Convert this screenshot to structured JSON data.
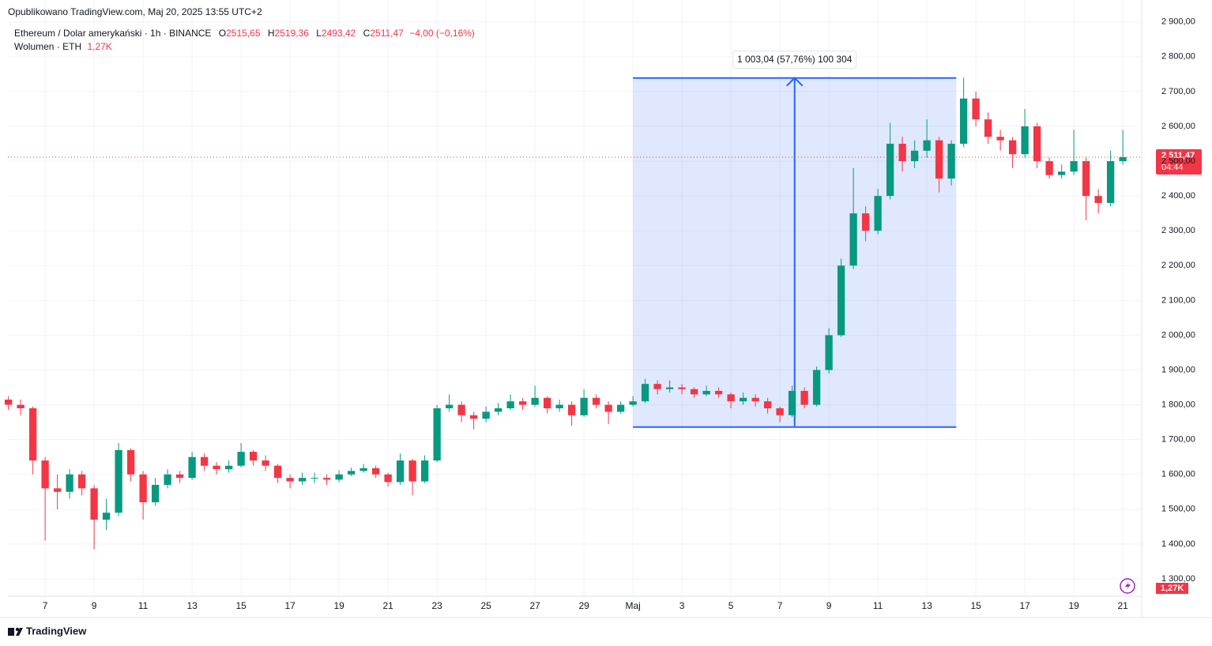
{
  "header": {
    "published": "Opublikowano TradingView.com, Maj 20, 2025 13:55 UTC+2",
    "symbol": "Ethereum / Dolar amerykański · 1h · BINANCE",
    "o_label": "O",
    "o": "2515,65",
    "h_label": "H",
    "h": "2519,36",
    "l_label": "L",
    "l": "2493,42",
    "c_label": "C",
    "c": "2511,47",
    "change": "−4,00 (−0,16%)",
    "volume_label": "Wolumen · ETH",
    "volume": "1,27K"
  },
  "footer": {
    "brand": "TradingView"
  },
  "chart_data": {
    "type": "candlestick",
    "up_color": "#089981",
    "down_color": "#f23645",
    "grid": true,
    "xlim": [
      5.48,
      51.77
    ],
    "ylim": [
      1250,
      2963
    ],
    "xticks": [
      7,
      9,
      11,
      13,
      15,
      17,
      19,
      21,
      23,
      25,
      27,
      29,
      {
        "value": 31,
        "label": "Maj"
      },
      {
        "value": 33,
        "label": "3"
      },
      {
        "value": 35,
        "label": "5"
      },
      {
        "value": 37,
        "label": "7"
      },
      {
        "value": 39,
        "label": "9"
      },
      {
        "value": 41,
        "label": "11"
      },
      {
        "value": 43,
        "label": "13"
      },
      {
        "value": 45,
        "label": "15"
      },
      {
        "value": 47,
        "label": "17"
      },
      {
        "value": 49,
        "label": "19"
      },
      {
        "value": 51,
        "label": "21"
      }
    ],
    "yticks": [
      {
        "value": 1300,
        "label": "1 300,00"
      },
      {
        "value": 1400,
        "label": "1 400,00"
      },
      {
        "value": 1500,
        "label": "1 500,00"
      },
      {
        "value": 1600,
        "label": "1 600,00"
      },
      {
        "value": 1700,
        "label": "1 700,00"
      },
      {
        "value": 1800,
        "label": "1 800,00"
      },
      {
        "value": 1900,
        "label": "1 900,00"
      },
      {
        "value": 2000,
        "label": "2 000,00"
      },
      {
        "value": 2100,
        "label": "2 100,00"
      },
      {
        "value": 2200,
        "label": "2 200,00"
      },
      {
        "value": 2300,
        "label": "2 300,00"
      },
      {
        "value": 2400,
        "label": "2 400,00"
      },
      {
        "value": 2500,
        "label": "2 500,00"
      },
      {
        "value": 2600,
        "label": "2 600,00"
      },
      {
        "value": 2700,
        "label": "2 700,00"
      },
      {
        "value": 2800,
        "label": "2 800,00"
      },
      {
        "value": 2900,
        "label": "2 900,00"
      }
    ],
    "x": [
      5.5,
      6,
      6.5,
      7,
      7.5,
      8,
      8.5,
      9,
      9.5,
      10,
      10.5,
      11,
      11.5,
      12,
      12.5,
      13,
      13.5,
      14,
      14.5,
      15,
      15.5,
      16,
      16.5,
      17,
      17.5,
      18,
      18.5,
      19,
      19.5,
      20,
      20.5,
      21,
      21.5,
      22,
      22.5,
      23,
      23.5,
      24,
      24.5,
      25,
      25.5,
      26,
      26.5,
      27,
      27.5,
      28,
      28.5,
      29,
      29.5,
      30,
      30.5,
      31,
      31.5,
      32,
      32.5,
      33,
      33.5,
      34,
      34.5,
      35,
      35.5,
      36,
      36.5,
      37,
      37.5,
      38,
      38.5,
      39,
      39.5,
      40,
      40.5,
      41,
      41.5,
      42,
      42.5,
      43,
      43.5,
      44,
      44.5,
      45,
      45.5,
      46,
      46.5,
      47,
      47.5,
      48,
      48.5,
      49,
      49.5,
      50,
      50.5,
      51
    ],
    "open": [
      1815,
      1800,
      1790,
      1640,
      1560,
      1550,
      1600,
      1560,
      1470,
      1490,
      1670,
      1600,
      1520,
      1570,
      1600,
      1590,
      1650,
      1625,
      1615,
      1625,
      1665,
      1640,
      1625,
      1590,
      1580,
      1590,
      1590,
      1585,
      1600,
      1610,
      1618,
      1600,
      1578,
      1640,
      1580,
      1640,
      1790,
      1800,
      1770,
      1760,
      1780,
      1790,
      1810,
      1800,
      1820,
      1790,
      1800,
      1770,
      1820,
      1800,
      1780,
      1800,
      1810,
      1860,
      1845,
      1850,
      1845,
      1830,
      1840,
      1830,
      1810,
      1820,
      1810,
      1790,
      1770,
      1840,
      1800,
      1900,
      2000,
      2200,
      2350,
      2300,
      2400,
      2550,
      2500,
      2530,
      2560,
      2450,
      2550,
      2680,
      2620,
      2570,
      2560,
      2520,
      2600,
      2500,
      2460,
      2470,
      2500,
      2400,
      2380,
      2500
    ],
    "high": [
      1825,
      1815,
      1795,
      1650,
      1600,
      1615,
      1610,
      1570,
      1530,
      1690,
      1675,
      1610,
      1590,
      1615,
      1610,
      1665,
      1660,
      1635,
      1640,
      1690,
      1670,
      1655,
      1630,
      1600,
      1605,
      1605,
      1600,
      1612,
      1620,
      1630,
      1625,
      1605,
      1660,
      1645,
      1655,
      1800,
      1830,
      1810,
      1780,
      1795,
      1805,
      1830,
      1820,
      1855,
      1825,
      1815,
      1810,
      1845,
      1830,
      1810,
      1810,
      1825,
      1875,
      1870,
      1870,
      1860,
      1850,
      1855,
      1850,
      1835,
      1835,
      1830,
      1820,
      1795,
      1855,
      1850,
      1910,
      2020,
      2220,
      2480,
      2370,
      2420,
      2610,
      2570,
      2560,
      2620,
      2570,
      2560,
      2740,
      2700,
      2640,
      2590,
      2570,
      2650,
      2610,
      2510,
      2490,
      2590,
      2510,
      2420,
      2530,
      2590
    ],
    "low": [
      1785,
      1770,
      1600,
      1410,
      1500,
      1530,
      1540,
      1385,
      1440,
      1480,
      1580,
      1470,
      1510,
      1560,
      1575,
      1585,
      1610,
      1600,
      1605,
      1620,
      1625,
      1610,
      1575,
      1560,
      1570,
      1575,
      1570,
      1578,
      1595,
      1605,
      1590,
      1565,
      1570,
      1540,
      1575,
      1635,
      1780,
      1750,
      1730,
      1750,
      1770,
      1785,
      1785,
      1795,
      1775,
      1780,
      1740,
      1765,
      1790,
      1745,
      1775,
      1795,
      1805,
      1830,
      1835,
      1830,
      1820,
      1825,
      1820,
      1790,
      1800,
      1795,
      1775,
      1750,
      1765,
      1790,
      1795,
      1890,
      1995,
      2190,
      2270,
      2290,
      2390,
      2470,
      2480,
      2510,
      2410,
      2430,
      2540,
      2600,
      2550,
      2530,
      2480,
      2510,
      2480,
      2450,
      2450,
      2460,
      2330,
      2350,
      2370,
      2490
    ],
    "close": [
      1800,
      1790,
      1640,
      1560,
      1550,
      1600,
      1560,
      1470,
      1490,
      1670,
      1600,
      1520,
      1570,
      1600,
      1590,
      1650,
      1625,
      1615,
      1625,
      1665,
      1640,
      1625,
      1590,
      1580,
      1590,
      1590,
      1585,
      1600,
      1610,
      1618,
      1600,
      1578,
      1640,
      1580,
      1640,
      1790,
      1800,
      1770,
      1760,
      1780,
      1790,
      1810,
      1800,
      1820,
      1790,
      1800,
      1770,
      1820,
      1800,
      1780,
      1800,
      1810,
      1860,
      1845,
      1850,
      1845,
      1830,
      1840,
      1830,
      1810,
      1820,
      1810,
      1790,
      1770,
      1840,
      1800,
      1900,
      2000,
      2200,
      2350,
      2300,
      2400,
      2550,
      2500,
      2530,
      2560,
      2450,
      2550,
      2680,
      2620,
      2570,
      2560,
      2520,
      2600,
      2500,
      2460,
      2470,
      2500,
      2400,
      2380,
      2500,
      2511.47
    ],
    "last_price": {
      "value": 2511.47,
      "label": "2 511,47",
      "countdown": "04:44"
    },
    "measure": {
      "from_x": 31,
      "to_x": 44.2,
      "from_price": 1736,
      "to_price": 2739.04,
      "label": "1 003,04 (57,76%) 100 304"
    }
  }
}
